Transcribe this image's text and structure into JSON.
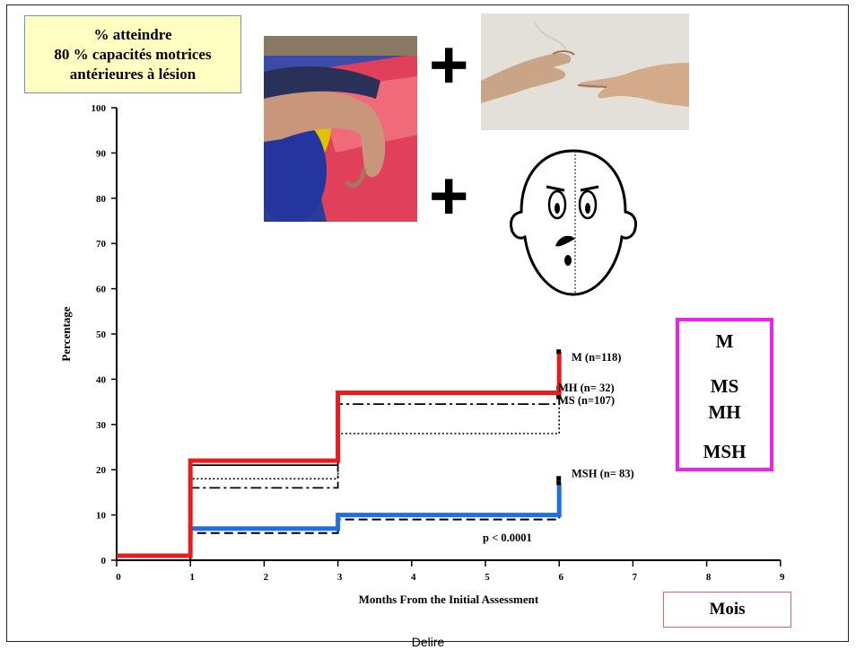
{
  "callout": {
    "line1": "% atteindre",
    "line2": "80 % capacités motrices",
    "line3": "antérieures à lésion"
  },
  "plus_sign": "+",
  "legend_box": {
    "items": [
      "M",
      "MS",
      "MH",
      "MSH"
    ]
  },
  "mois_label": "Mois",
  "footer": "Delire",
  "images": [
    {
      "name": "hand-on-mat-photo"
    },
    {
      "name": "creation-of-adam-hands"
    },
    {
      "name": "half-face-cartoon"
    }
  ],
  "colors": {
    "M": "#e81c1c",
    "MSH": "#1f6fe0",
    "legend_border": "#ee22ee",
    "mois_border": "#e06464",
    "callout_bg": "#ffffc2"
  },
  "chart_data": {
    "type": "line",
    "step": true,
    "xlabel": "Months From the Initial Assessment",
    "ylabel": "Percentage",
    "xlim": [
      0,
      9
    ],
    "ylim": [
      0,
      100
    ],
    "xticks": [
      0,
      1,
      2,
      3,
      4,
      5,
      6,
      7,
      8,
      9
    ],
    "yticks": [
      0,
      10,
      20,
      30,
      40,
      50,
      60,
      70,
      80,
      90,
      100
    ],
    "annotation": "p < 0.0001",
    "series": [
      {
        "name": "M",
        "label": "M   (n=118)",
        "x": [
          0,
          1,
          3,
          6
        ],
        "y": [
          1,
          22,
          37,
          46
        ],
        "color": "#e81c1c",
        "style": "thick"
      },
      {
        "name": "MH",
        "label": "MH  (n= 32)",
        "x": [
          0,
          1,
          3,
          6
        ],
        "y": [
          0,
          21,
          37,
          38
        ],
        "color": "#000000",
        "style": "solid"
      },
      {
        "name": "MS",
        "label": "MS (n=107)",
        "x": [
          0,
          1,
          3,
          6
        ],
        "y": [
          0,
          16,
          34.5,
          36
        ],
        "color": "#000000",
        "style": "dashdot"
      },
      {
        "name": "unlabeled-dotted",
        "label": "",
        "x": [
          0,
          1,
          3,
          6
        ],
        "y": [
          0,
          18,
          28,
          36
        ],
        "color": "#000000",
        "style": "dotted"
      },
      {
        "name": "MSH",
        "label": "MSH (n= 83)",
        "x": [
          1,
          3,
          6
        ],
        "y": [
          7,
          10,
          17
        ],
        "color": "#1f6fe0",
        "style": "thick"
      },
      {
        "name": "unlabeled-dashed",
        "label": "",
        "x": [
          0,
          1,
          3,
          6
        ],
        "y": [
          0,
          6,
          9,
          18
        ],
        "color": "#000000",
        "style": "dashed"
      }
    ]
  }
}
